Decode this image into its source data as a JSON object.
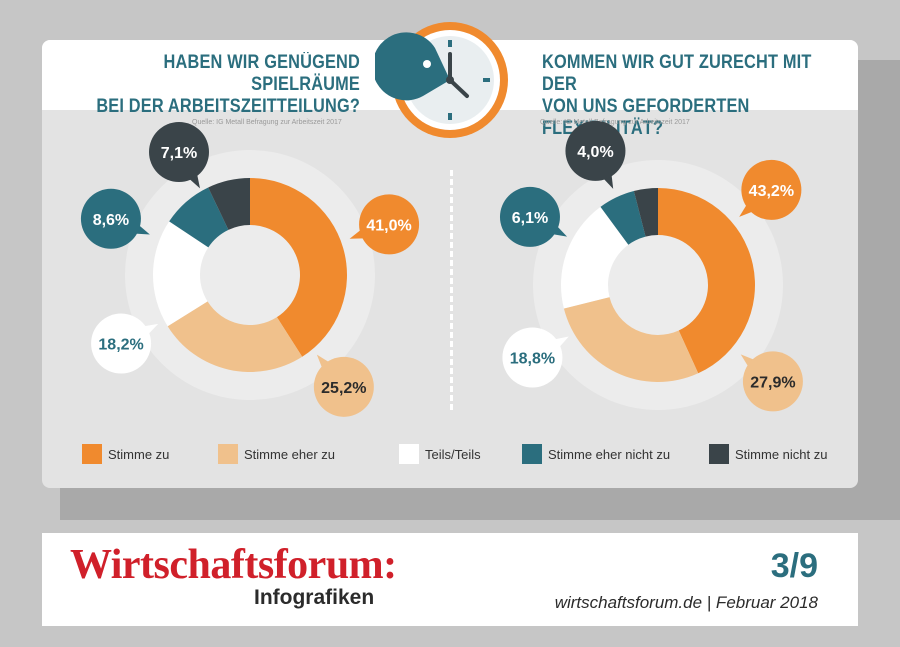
{
  "titles": {
    "left_line1": "HABEN WIR GENÜGEND SPIELRÄUME",
    "left_line2": "BEI DER ARBEITSZEITTEILUNG?",
    "right_line1": "KOMMEN WIR GUT ZURECHT MIT DER",
    "right_line2": "VON UNS GEFORDERTEN FLEXIBILITÄT?"
  },
  "source": "Quelle: IG Metall Befragung zur Arbeitszeit 2017",
  "legend": [
    {
      "label": "Stimme zu",
      "color": "#f08a2e"
    },
    {
      "label": "Stimme eher zu",
      "color": "#f0c18c"
    },
    {
      "label": "Teils/Teils",
      "color": "#ffffff"
    },
    {
      "label": "Stimme eher nicht zu",
      "color": "#2b6e7e"
    },
    {
      "label": "Stimme nicht zu",
      "color": "#3a4449"
    }
  ],
  "chart_data": [
    {
      "type": "pie",
      "title": "HABEN WIR GENÜGEND SPIELRÄUME BEI DER ARBEITSZEITTEILUNG?",
      "labels": [
        "Stimme zu",
        "Stimme eher zu",
        "Teils/Teils",
        "Stimme eher nicht zu",
        "Stimme nicht zu"
      ],
      "values": [
        41.0,
        25.2,
        18.2,
        8.6,
        7.1
      ],
      "value_labels": [
        "41,0%",
        "25,2%",
        "18,2%",
        "8,6%",
        "7,1%"
      ]
    },
    {
      "type": "pie",
      "title": "KOMMEN WIR GUT ZURECHT MIT DER VON UNS GEFORDERTEN FLEXIBILITÄT?",
      "labels": [
        "Stimme zu",
        "Stimme eher zu",
        "Teils/Teils",
        "Stimme eher nicht zu",
        "Stimme nicht zu"
      ],
      "values": [
        43.2,
        27.9,
        18.8,
        6.1,
        4.0
      ],
      "value_labels": [
        "43,2%",
        "27,9%",
        "18,8%",
        "6,1%",
        "4,0%"
      ]
    }
  ],
  "footer": {
    "brand": "Wirtschaftsforum:",
    "subtitle": "Infografiken",
    "page": "3/9",
    "site": "wirtschaftsforum.de | Februar 2018"
  }
}
